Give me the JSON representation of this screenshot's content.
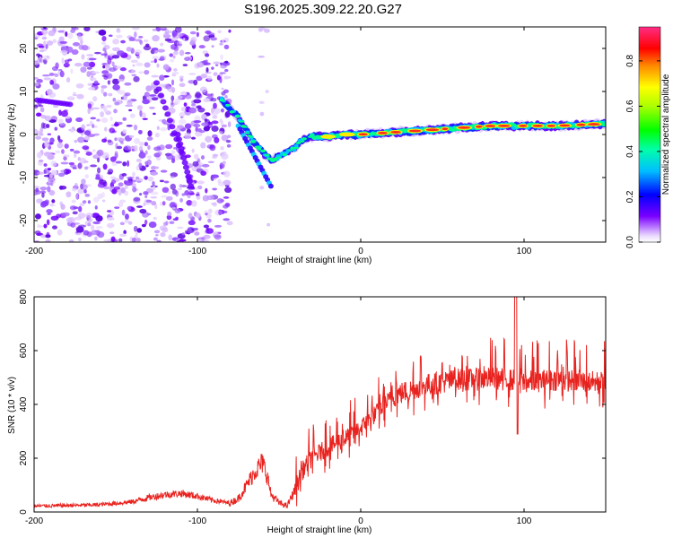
{
  "chart_data": [
    {
      "type": "heatmap",
      "title": "S196.2025.309.22.20.G27",
      "xlabel": "Height of straight line (km)",
      "ylabel": "Frequency (Hz)",
      "xlim": [
        -200,
        150
      ],
      "ylim": [
        -25,
        25
      ],
      "xticks": [
        -200,
        -100,
        0,
        100
      ],
      "yticks": [
        -20,
        -10,
        0,
        10,
        20
      ],
      "colorbar": {
        "label": "Normalized spectral amplitude",
        "range": [
          0,
          0.95
        ],
        "ticks": [
          0.0,
          0.2,
          0.4,
          0.6,
          0.8
        ]
      },
      "ridge": {
        "x": [
          -85,
          -80,
          -75,
          -70,
          -65,
          -60,
          -55,
          -50,
          -45,
          -40,
          -35,
          -30,
          -20,
          -10,
          0,
          20,
          40,
          60,
          80,
          100,
          120,
          150
        ],
        "y": [
          8,
          6,
          4,
          1,
          -2,
          -4,
          -6,
          -5,
          -4,
          -3,
          -1,
          -0.5,
          -0.5,
          0,
          0,
          0.5,
          1,
          1.5,
          2,
          2,
          2,
          2.5
        ]
      }
    },
    {
      "type": "line",
      "xlabel": "Height of straight line (km)",
      "ylabel": "SNR (10 * v/v)",
      "xlim": [
        -200,
        150
      ],
      "ylim": [
        0,
        800
      ],
      "xticks": [
        -200,
        -100,
        0,
        100
      ],
      "yticks": [
        0,
        200,
        400,
        600,
        800
      ],
      "series": [
        {
          "name": "SNR",
          "color": "#e8231f",
          "x": [
            -200,
            -180,
            -160,
            -140,
            -130,
            -120,
            -110,
            -100,
            -90,
            -80,
            -75,
            -70,
            -65,
            -60,
            -57,
            -55,
            -50,
            -45,
            -40,
            -35,
            -30,
            -20,
            -10,
            0,
            10,
            20,
            30,
            40,
            50,
            60,
            70,
            80,
            90,
            100,
            110,
            120,
            130,
            140,
            150
          ],
          "y": [
            20,
            22,
            25,
            35,
            50,
            60,
            65,
            55,
            40,
            30,
            45,
            90,
            140,
            170,
            120,
            60,
            30,
            20,
            80,
            150,
            190,
            230,
            260,
            300,
            360,
            420,
            440,
            460,
            470,
            480,
            480,
            485,
            480,
            470,
            475,
            480,
            475,
            470,
            470
          ]
        }
      ]
    }
  ],
  "colors": {
    "line": "#e8231f",
    "axis": "#000000"
  }
}
